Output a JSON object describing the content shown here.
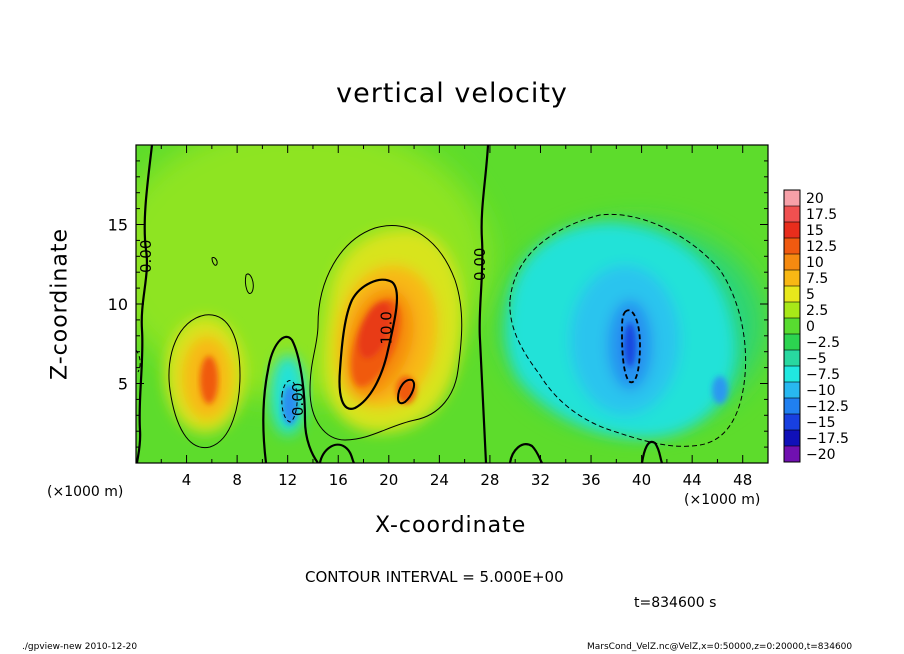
{
  "chart_data": {
    "type": "heatmap",
    "title": "vertical velocity",
    "xlabel": "X-coordinate",
    "ylabel": "Z-coordinate",
    "x_unit_label": "(×1000 m)",
    "xlim": [
      0,
      50
    ],
    "ylim": [
      0,
      20
    ],
    "x_ticks": [
      4,
      8,
      12,
      16,
      20,
      24,
      28,
      32,
      36,
      40,
      44,
      48
    ],
    "y_ticks": [
      5,
      10,
      15
    ],
    "colorbar": {
      "levels": [
        20,
        17.5,
        15,
        12.5,
        10,
        7.5,
        5,
        2.5,
        0,
        -2.5,
        -5,
        -7.5,
        -10,
        -12.5,
        -15,
        -17.5,
        -20
      ],
      "labels": [
        "20",
        "17.5",
        "15",
        "12.5",
        "10",
        "7.5",
        "5",
        "2.5",
        "0",
        "−2.5",
        "−5",
        "−7.5",
        "−10",
        "−12.5",
        "−15",
        "−17.5",
        "−20"
      ],
      "colors": [
        "#f7a0a8",
        "#f05050",
        "#e82d1c",
        "#f05a10",
        "#f58a10",
        "#f8b814",
        "#e8e81c",
        "#a8e818",
        "#58dc30",
        "#2cd450",
        "#28d8a0",
        "#20e8e0",
        "#28b8f0",
        "#2080f0",
        "#1840e0",
        "#1010b8",
        "#7010b0"
      ]
    },
    "contour_labels": [
      {
        "text": "0.00",
        "x": 1.2,
        "z": 13.0
      },
      {
        "text": "0.00",
        "x": 13.2,
        "z": 4.0
      },
      {
        "text": "10.0",
        "x": 20.2,
        "z": 8.5
      },
      {
        "text": "0.00",
        "x": 27.6,
        "z": 12.5
      }
    ],
    "contour_interval_label": "CONTOUR INTERVAL = 5.000E+00"
  },
  "time_label": "t=834600 s",
  "footer_left": "./gpview-new  2010-12-20",
  "footer_right": "MarsCond_VelZ.nc@VelZ,x=0:50000,z=0:20000,t=834600"
}
